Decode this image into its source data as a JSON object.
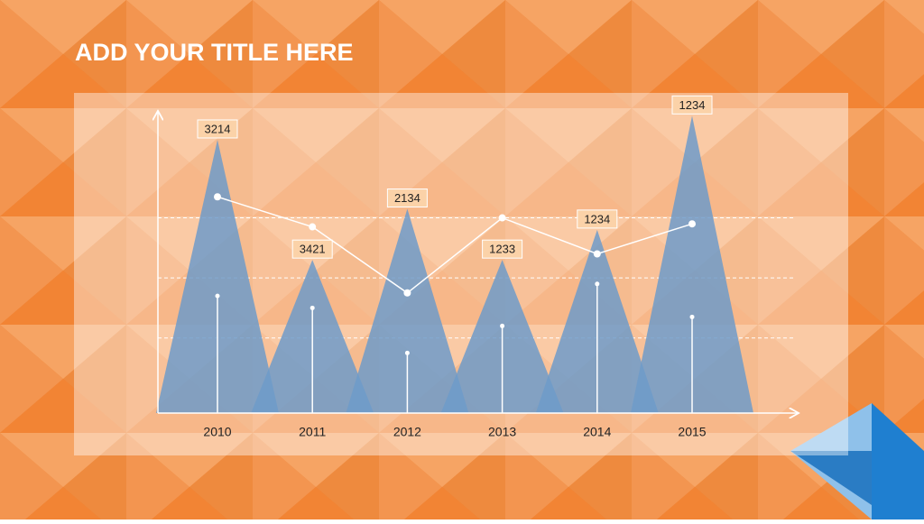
{
  "chart_data": {
    "type": "triangle",
    "title": "ADD YOUR TITLE HERE",
    "categories": [
      "2010",
      "2011",
      "2012",
      "2013",
      "2014",
      "2015"
    ],
    "values": [
      91,
      51,
      68,
      51,
      61,
      99
    ],
    "annotations": [
      "3214",
      "3421",
      "2134",
      "1233",
      "1234",
      "1234"
    ],
    "line_values": [
      72,
      62,
      40,
      65,
      53,
      63
    ],
    "stem_values": [
      39,
      35,
      20,
      29,
      43,
      32
    ],
    "grid_values": [
      25,
      45,
      65
    ],
    "ylim": [
      0,
      100
    ],
    "color": "#6f9bc9"
  }
}
